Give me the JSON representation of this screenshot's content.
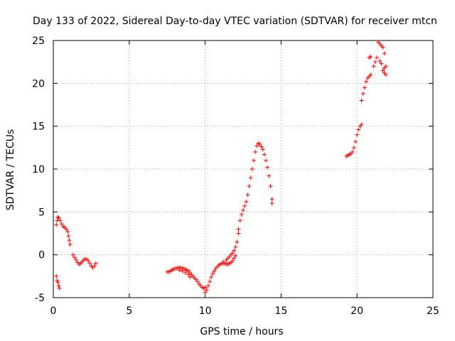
{
  "chart_data": {
    "type": "scatter",
    "title": "Day 133 of 2022, Sidereal Day-to-day VTEC variation (SDTVAR) for receiver mtcn",
    "xlabel": "GPS time / hours",
    "ylabel": "SDTVAR / TECUs",
    "xlim": [
      0,
      25
    ],
    "ylim": [
      -5,
      25
    ],
    "xticks": [
      "0",
      "5",
      "10",
      "15",
      "20",
      "25"
    ],
    "yticks": [
      "-5",
      "0",
      "5",
      "10",
      "15",
      "20",
      "25"
    ],
    "grid": true,
    "marker": "+",
    "marker_color": "#ff0000",
    "series": [
      {
        "name": "SDTVAR",
        "points": [
          [
            0.2,
            -2.5
          ],
          [
            0.25,
            -3.0
          ],
          [
            0.3,
            -3.2
          ],
          [
            0.35,
            -3.6
          ],
          [
            0.4,
            -3.9
          ],
          [
            0.2,
            3.5
          ],
          [
            0.25,
            4.0
          ],
          [
            0.3,
            4.4
          ],
          [
            0.35,
            4.3
          ],
          [
            0.45,
            4.0
          ],
          [
            0.55,
            3.6
          ],
          [
            0.65,
            3.3
          ],
          [
            0.75,
            3.2
          ],
          [
            0.85,
            3.0
          ],
          [
            0.95,
            2.7
          ],
          [
            1.0,
            2.2
          ],
          [
            1.05,
            1.7
          ],
          [
            1.1,
            1.2
          ],
          [
            1.3,
            0.0
          ],
          [
            1.4,
            -0.3
          ],
          [
            1.5,
            -0.6
          ],
          [
            1.6,
            -0.9
          ],
          [
            1.7,
            -1.1
          ],
          [
            1.8,
            -1.0
          ],
          [
            1.9,
            -0.8
          ],
          [
            2.0,
            -0.6
          ],
          [
            2.1,
            -0.5
          ],
          [
            2.2,
            -0.5
          ],
          [
            2.3,
            -0.7
          ],
          [
            2.4,
            -1.0
          ],
          [
            2.5,
            -1.3
          ],
          [
            2.6,
            -1.5
          ],
          [
            2.7,
            -1.3
          ],
          [
            2.8,
            -1.0
          ],
          [
            7.5,
            -2.0
          ],
          [
            7.6,
            -2.0
          ],
          [
            7.7,
            -1.9
          ],
          [
            7.8,
            -1.8
          ],
          [
            7.9,
            -1.7
          ],
          [
            8.0,
            -1.6
          ],
          [
            8.1,
            -1.6
          ],
          [
            8.2,
            -1.5
          ],
          [
            8.3,
            -1.5
          ],
          [
            8.4,
            -1.5
          ],
          [
            8.5,
            -1.6
          ],
          [
            8.6,
            -1.6
          ],
          [
            8.7,
            -1.7
          ],
          [
            8.8,
            -1.8
          ],
          [
            8.9,
            -1.9
          ],
          [
            9.0,
            -2.1
          ],
          [
            9.1,
            -2.3
          ],
          [
            9.2,
            -2.5
          ],
          [
            9.3,
            -2.7
          ],
          [
            9.4,
            -2.9
          ],
          [
            9.5,
            -3.1
          ],
          [
            9.6,
            -3.4
          ],
          [
            9.7,
            -3.6
          ],
          [
            9.8,
            -3.8
          ],
          [
            9.9,
            -3.9
          ],
          [
            10.0,
            -3.8
          ],
          [
            8.3,
            -1.8
          ],
          [
            8.5,
            -1.9
          ],
          [
            8.7,
            -2.1
          ],
          [
            8.9,
            -2.3
          ],
          [
            9.0,
            -2.6
          ],
          [
            10.0,
            -4.4
          ],
          [
            10.1,
            -4.1
          ],
          [
            10.2,
            -3.6
          ],
          [
            10.3,
            -3.1
          ],
          [
            10.4,
            -2.6
          ],
          [
            10.5,
            -2.2
          ],
          [
            10.6,
            -1.9
          ],
          [
            10.7,
            -1.6
          ],
          [
            10.8,
            -1.4
          ],
          [
            10.9,
            -1.2
          ],
          [
            11.0,
            -1.1
          ],
          [
            11.1,
            -1.0
          ],
          [
            11.2,
            -1.0
          ],
          [
            11.3,
            -1.0
          ],
          [
            11.4,
            -1.1
          ],
          [
            11.5,
            -1.1
          ],
          [
            11.6,
            -1.0
          ],
          [
            11.7,
            -0.9
          ],
          [
            11.8,
            -0.7
          ],
          [
            11.9,
            -0.4
          ],
          [
            12.0,
            -0.1
          ],
          [
            11.2,
            -0.8
          ],
          [
            11.4,
            -0.6
          ],
          [
            11.5,
            -0.4
          ],
          [
            11.6,
            -0.2
          ],
          [
            11.7,
            0.0
          ],
          [
            11.8,
            0.2
          ],
          [
            11.9,
            0.5
          ],
          [
            12.0,
            0.9
          ],
          [
            12.1,
            1.5
          ],
          [
            12.2,
            2.5
          ],
          [
            12.2,
            3.0
          ],
          [
            12.3,
            4.0
          ],
          [
            12.4,
            4.7
          ],
          [
            12.5,
            5.2
          ],
          [
            12.6,
            5.7
          ],
          [
            12.7,
            6.2
          ],
          [
            12.8,
            7.0
          ],
          [
            12.9,
            8.0
          ],
          [
            13.0,
            9.0
          ],
          [
            13.1,
            10.0
          ],
          [
            13.2,
            11.0
          ],
          [
            13.3,
            12.0
          ],
          [
            13.4,
            12.7
          ],
          [
            13.5,
            13.0
          ],
          [
            13.6,
            12.9
          ],
          [
            13.7,
            12.6
          ],
          [
            13.8,
            12.3
          ],
          [
            13.9,
            11.7
          ],
          [
            14.0,
            11.0
          ],
          [
            14.1,
            10.2
          ],
          [
            14.2,
            9.2
          ],
          [
            14.3,
            8.0
          ],
          [
            14.4,
            6.5
          ],
          [
            14.4,
            6.0
          ],
          [
            19.3,
            11.5
          ],
          [
            19.4,
            11.6
          ],
          [
            19.5,
            11.7
          ],
          [
            19.6,
            11.8
          ],
          [
            19.7,
            12.0
          ],
          [
            19.8,
            12.5
          ],
          [
            19.9,
            13.2
          ],
          [
            20.0,
            14.0
          ],
          [
            20.1,
            14.6
          ],
          [
            20.2,
            15.0
          ],
          [
            20.3,
            15.2
          ],
          [
            20.3,
            18.0
          ],
          [
            20.4,
            18.8
          ],
          [
            20.5,
            19.5
          ],
          [
            20.6,
            20.2
          ],
          [
            20.7,
            20.6
          ],
          [
            20.8,
            20.8
          ],
          [
            20.9,
            21.0
          ],
          [
            20.8,
            23.0
          ],
          [
            20.9,
            23.1
          ],
          [
            21.1,
            22.0
          ],
          [
            21.2,
            22.5
          ],
          [
            21.3,
            23.0
          ],
          [
            21.4,
            24.8
          ],
          [
            21.5,
            24.6
          ],
          [
            21.6,
            24.4
          ],
          [
            21.7,
            24.2
          ],
          [
            21.8,
            23.5
          ],
          [
            21.9,
            22.0
          ],
          [
            21.7,
            21.5
          ],
          [
            21.8,
            21.8
          ],
          [
            21.6,
            22.3
          ],
          [
            21.5,
            22.6
          ],
          [
            21.8,
            21.2
          ],
          [
            21.9,
            21.0
          ]
        ]
      }
    ]
  }
}
